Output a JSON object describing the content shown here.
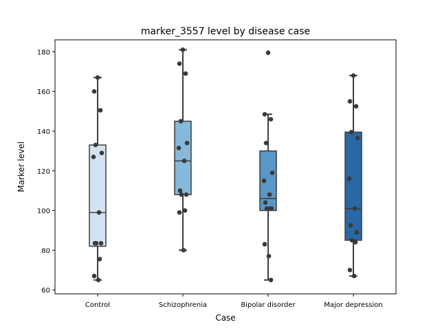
{
  "chart_data": {
    "type": "box",
    "title": "marker_3557 level by disease case",
    "xlabel": "Case",
    "ylabel": "Marker level",
    "ylim": [
      58,
      186
    ],
    "yticks": [
      60,
      80,
      100,
      120,
      140,
      160,
      180
    ],
    "grid": false,
    "categories": [
      "Control",
      "Schizophrenia",
      "Bipolar disorder",
      "Major depression"
    ],
    "colors": [
      "#d3e2f1",
      "#86b8d9",
      "#5a96c6",
      "#2b67a4"
    ],
    "boxes": [
      {
        "category": "Control",
        "whisker_low": 65,
        "q1": 82,
        "median": 99,
        "q3": 133,
        "whisker_high": 167,
        "outliers": []
      },
      {
        "category": "Schizophrenia",
        "whisker_low": 80,
        "q1": 108,
        "median": 125,
        "q3": 145,
        "whisker_high": 181,
        "outliers": []
      },
      {
        "category": "Bipolar disorder",
        "whisker_low": 65,
        "q1": 100,
        "median": 106,
        "q3": 130,
        "whisker_high": 148.5,
        "outliers": [
          179.5
        ]
      },
      {
        "category": "Major depression",
        "whisker_low": 67,
        "q1": 85,
        "median": 101,
        "q3": 139.5,
        "whisker_high": 168,
        "outliers": []
      }
    ],
    "points": [
      {
        "category": "Control",
        "values": [
          167,
          160,
          150.5,
          133,
          129,
          127,
          99,
          83.5,
          83.5,
          83.5,
          75.5,
          67,
          65
        ]
      },
      {
        "category": "Schizophrenia",
        "values": [
          181,
          174,
          169,
          145,
          134,
          131.5,
          125,
          110,
          108,
          108,
          100,
          99,
          80
        ]
      },
      {
        "category": "Bipolar disorder",
        "values": [
          179.5,
          148.5,
          146,
          134,
          119,
          115,
          108,
          104,
          101,
          101,
          101,
          83,
          77,
          65
        ]
      },
      {
        "category": "Major depression",
        "values": [
          168,
          155,
          152.5,
          139.5,
          136.5,
          116,
          101,
          92.5,
          89,
          85,
          84,
          70,
          67
        ]
      }
    ]
  }
}
